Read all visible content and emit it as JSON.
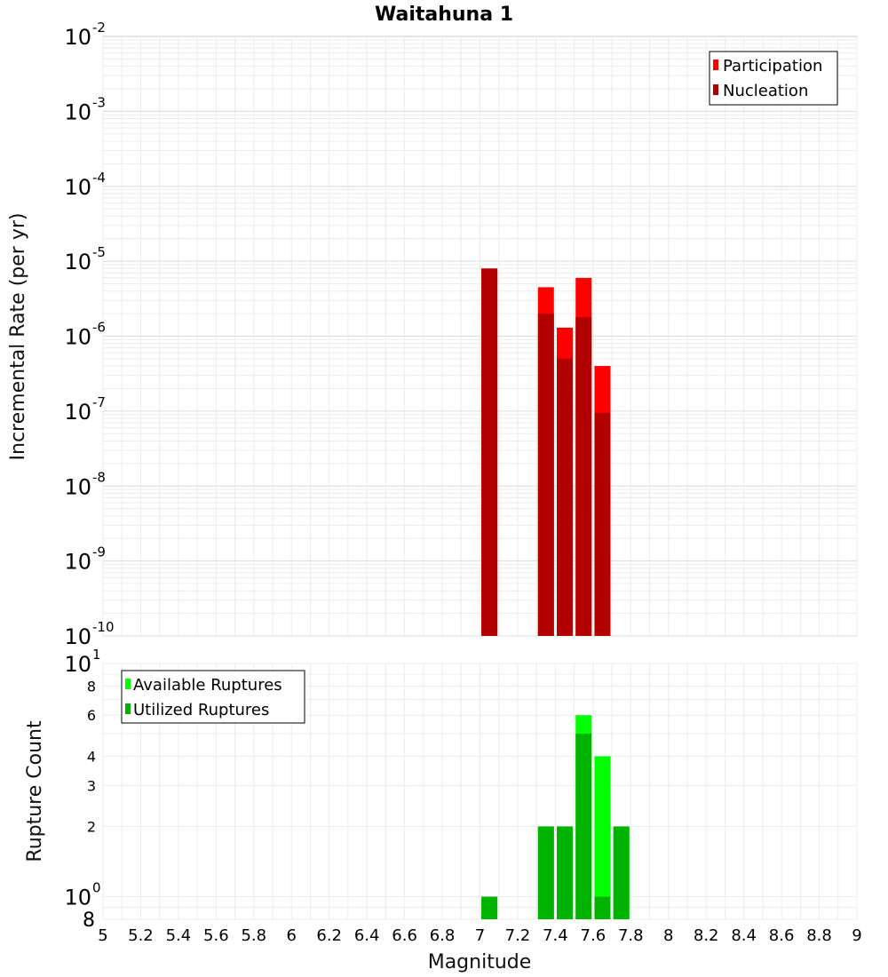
{
  "chart_data": [
    {
      "type": "bar",
      "title": "Waitahuna 1",
      "ylabel": "Incremental Rate (per yr)",
      "yscale": "log",
      "ylim": [
        1e-10,
        0.01
      ],
      "xlim": [
        5,
        9
      ],
      "y_ticks": [
        {
          "base": "10",
          "exp": "-10"
        },
        {
          "base": "10",
          "exp": "-9"
        },
        {
          "base": "10",
          "exp": "-8"
        },
        {
          "base": "10",
          "exp": "-7"
        },
        {
          "base": "10",
          "exp": "-6"
        },
        {
          "base": "10",
          "exp": "-5"
        },
        {
          "base": "10",
          "exp": "-4"
        },
        {
          "base": "10",
          "exp": "-3"
        },
        {
          "base": "10",
          "exp": "-2"
        }
      ],
      "grid": true,
      "legend_position": "top-right",
      "series": [
        {
          "name": "Participation",
          "color": "#ff0000",
          "x": [
            7.05,
            7.35,
            7.45,
            7.55,
            7.65
          ],
          "values": [
            8e-06,
            4.5e-06,
            1.3e-06,
            6e-06,
            4e-07
          ]
        },
        {
          "name": "Nucleation",
          "color": "#b30000",
          "x": [
            7.05,
            7.35,
            7.45,
            7.55,
            7.65
          ],
          "values": [
            8e-06,
            2e-06,
            5e-07,
            1.8e-06,
            9.5e-08
          ]
        }
      ]
    },
    {
      "type": "bar",
      "ylabel": "Rupture Count",
      "xlabel": "Magnitude",
      "yscale": "log",
      "ylim": [
        0.8,
        10
      ],
      "xlim": [
        5,
        9
      ],
      "x_ticks": [
        "5",
        "5.2",
        "5.4",
        "5.6",
        "5.8",
        "6",
        "6.2",
        "6.4",
        "6.6",
        "6.8",
        "7",
        "7.2",
        "7.4",
        "7.6",
        "7.8",
        "8",
        "8.2",
        "8.4",
        "8.6",
        "8.8",
        "9"
      ],
      "y_ticks": [
        {
          "base": "8",
          "value": 0.8
        },
        {
          "base": "10",
          "exp": "0",
          "value": 1
        },
        {
          "base": "2",
          "value": 2
        },
        {
          "base": "3",
          "value": 3
        },
        {
          "base": "4",
          "value": 4
        },
        {
          "base": "6",
          "value": 6
        },
        {
          "base": "8",
          "value": 8
        },
        {
          "base": "10",
          "exp": "1",
          "value": 10
        }
      ],
      "grid": true,
      "legend_position": "top-left",
      "series": [
        {
          "name": "Available Ruptures",
          "color": "#00ff00",
          "x": [
            7.05,
            7.35,
            7.45,
            7.55,
            7.65,
            7.75
          ],
          "values": [
            1,
            2,
            2,
            6,
            4,
            2
          ]
        },
        {
          "name": "Utilized Ruptures",
          "color": "#00b300",
          "x": [
            7.05,
            7.35,
            7.45,
            7.55,
            7.65,
            7.75
          ],
          "values": [
            1,
            2,
            2,
            5,
            1,
            2
          ]
        }
      ]
    }
  ]
}
